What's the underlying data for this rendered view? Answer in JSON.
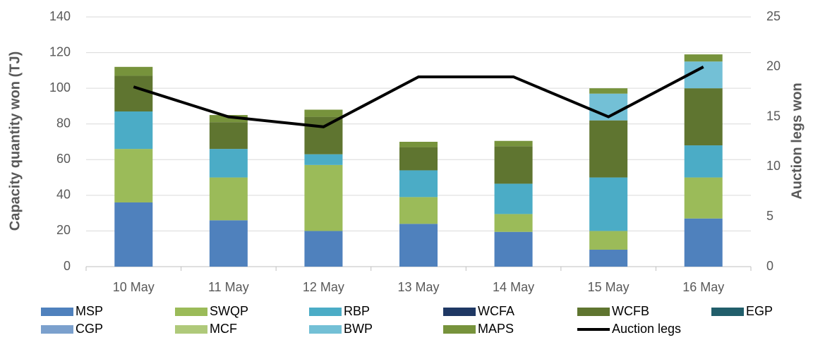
{
  "chart_data": {
    "type": "bar",
    "stacked": true,
    "y_label": "Capacity quantity won (TJ)",
    "y2_label": "Auction legs won",
    "categories": [
      "10 May",
      "11 May",
      "12 May",
      "13 May",
      "14 May",
      "15 May",
      "16 May"
    ],
    "series": [
      {
        "name": "MSP",
        "color": "#4f81bd",
        "values": [
          36,
          26,
          20,
          24,
          19.5,
          9.5,
          27
        ]
      },
      {
        "name": "SWQP",
        "color": "#9bbb59",
        "values": [
          30,
          24,
          37,
          15,
          10,
          10.5,
          23
        ]
      },
      {
        "name": "RBP",
        "color": "#4bacc6",
        "values": [
          21,
          16,
          6,
          15,
          17,
          30,
          18
        ]
      },
      {
        "name": "WCFA",
        "color": "#1f3864",
        "values": [
          0,
          0,
          0,
          0,
          0,
          0,
          0
        ]
      },
      {
        "name": "WCFB",
        "color": "#5f7530",
        "values": [
          20,
          15,
          21,
          13,
          21,
          32,
          32
        ]
      },
      {
        "name": "EGP",
        "color": "#215e6b",
        "values": [
          0,
          0,
          0,
          0,
          0,
          0,
          0
        ]
      },
      {
        "name": "CGP",
        "color": "#7ba0cd",
        "values": [
          0,
          0,
          0,
          0,
          0,
          0,
          0
        ]
      },
      {
        "name": "MCF",
        "color": "#afc97a",
        "values": [
          0,
          0,
          0,
          0,
          0,
          0,
          0
        ]
      },
      {
        "name": "BWP",
        "color": "#73c0d6",
        "values": [
          0,
          0,
          0,
          0,
          0,
          15,
          15
        ]
      },
      {
        "name": "MAPS",
        "color": "#77933c",
        "values": [
          5,
          4,
          4,
          3,
          3,
          3,
          4
        ]
      },
      {
        "name": "Auction legs",
        "color": "#000000",
        "type": "line",
        "axis": "y2",
        "values": [
          18,
          15,
          14,
          19,
          19,
          15,
          20
        ]
      }
    ],
    "ylim": [
      0,
      140
    ],
    "yticks": [
      0,
      20,
      40,
      60,
      80,
      100,
      120,
      140
    ],
    "y2lim": [
      0,
      25
    ],
    "y2ticks": [
      0,
      5,
      10,
      15,
      20,
      25
    ],
    "grid": true
  }
}
